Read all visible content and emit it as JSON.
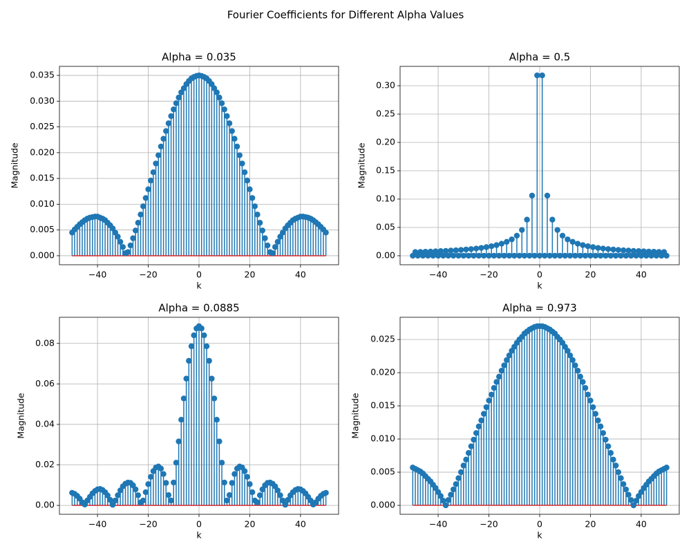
{
  "title": "Fourier Coefficients for Different Alpha Values",
  "chart_data": [
    {
      "type": "stem",
      "title": "Alpha = 0.035",
      "xlabel": "k",
      "ylabel": "Magnitude",
      "color": "#1f77b4",
      "baseline_color": "#d62728",
      "grid": true,
      "x": [
        -50,
        -49,
        -48,
        -47,
        -46,
        -45,
        -44,
        -43,
        -42,
        -41,
        -40,
        -39,
        -38,
        -37,
        -36,
        -35,
        -34,
        -33,
        -32,
        -31,
        -30,
        -29,
        -28,
        -27,
        -26,
        -25,
        -24,
        -23,
        -22,
        -21,
        -20,
        -19,
        -18,
        -17,
        -16,
        -15,
        -14,
        -13,
        -12,
        -11,
        -10,
        -9,
        -8,
        -7,
        -6,
        -5,
        -4,
        -3,
        -2,
        -1,
        0,
        1,
        2,
        3,
        4,
        5,
        6,
        7,
        8,
        9,
        10,
        11,
        12,
        13,
        14,
        15,
        16,
        17,
        18,
        19,
        20,
        21,
        22,
        23,
        24,
        25,
        26,
        27,
        28,
        29,
        30,
        31,
        32,
        33,
        34,
        35,
        36,
        37,
        38,
        39,
        40,
        41,
        42,
        43,
        44,
        45,
        46,
        47,
        48,
        49,
        50
      ],
      "values": [
        0.0045,
        0.0051,
        0.0056,
        0.0061,
        0.0065,
        0.0069,
        0.0072,
        0.0074,
        0.0075,
        0.0076,
        0.0076,
        0.0074,
        0.0072,
        0.0069,
        0.0064,
        0.0059,
        0.0053,
        0.0045,
        0.0037,
        0.0027,
        0.0017,
        0.0005,
        0.0007,
        0.002,
        0.0034,
        0.0049,
        0.0064,
        0.008,
        0.0096,
        0.0112,
        0.0129,
        0.0146,
        0.0162,
        0.0179,
        0.0195,
        0.0212,
        0.0227,
        0.0242,
        0.0257,
        0.0271,
        0.0284,
        0.0296,
        0.0307,
        0.0317,
        0.0325,
        0.0333,
        0.0339,
        0.0344,
        0.0347,
        0.0349,
        0.035,
        0.0349,
        0.0347,
        0.0344,
        0.0339,
        0.0333,
        0.0325,
        0.0317,
        0.0307,
        0.0296,
        0.0284,
        0.0271,
        0.0257,
        0.0242,
        0.0227,
        0.0212,
        0.0195,
        0.0179,
        0.0162,
        0.0146,
        0.0129,
        0.0112,
        0.0096,
        0.008,
        0.0064,
        0.0049,
        0.0034,
        0.002,
        0.0007,
        0.0005,
        0.0017,
        0.0027,
        0.0037,
        0.0045,
        0.0053,
        0.0059,
        0.0064,
        0.0069,
        0.0072,
        0.0074,
        0.0076,
        0.0076,
        0.0075,
        0.0074,
        0.0072,
        0.0069,
        0.0065,
        0.0061,
        0.0056,
        0.0051,
        0.0045
      ],
      "xlim": [
        -55,
        55
      ],
      "ylim": [
        -0.00175,
        0.03675
      ],
      "xticks": [
        {
          "value": -40,
          "label": "−40"
        },
        {
          "value": -20,
          "label": "−20"
        },
        0,
        20,
        40
      ],
      "yticks": [
        {
          "value": 0,
          "label": "0.000"
        },
        0.005,
        {
          "value": 0.01,
          "label": "0.010"
        },
        0.015,
        {
          "value": 0.02,
          "label": "0.020"
        },
        0.025,
        {
          "value": 0.03,
          "label": "0.030"
        },
        0.035
      ]
    },
    {
      "type": "stem",
      "title": "Alpha = 0.5",
      "xlabel": "k",
      "ylabel": "Magnitude",
      "color": "#1f77b4",
      "baseline_color": "#d62728",
      "grid": true,
      "x": [
        -50,
        -49,
        -48,
        -47,
        -46,
        -45,
        -44,
        -43,
        -42,
        -41,
        -40,
        -39,
        -38,
        -37,
        -36,
        -35,
        -34,
        -33,
        -32,
        -31,
        -30,
        -29,
        -28,
        -27,
        -26,
        -25,
        -24,
        -23,
        -22,
        -21,
        -20,
        -19,
        -18,
        -17,
        -16,
        -15,
        -14,
        -13,
        -12,
        -11,
        -10,
        -9,
        -8,
        -7,
        -6,
        -5,
        -4,
        -3,
        -2,
        -1,
        0,
        1,
        2,
        3,
        4,
        5,
        6,
        7,
        8,
        9,
        10,
        11,
        12,
        13,
        14,
        15,
        16,
        17,
        18,
        19,
        20,
        21,
        22,
        23,
        24,
        25,
        26,
        27,
        28,
        29,
        30,
        31,
        32,
        33,
        34,
        35,
        36,
        37,
        38,
        39,
        40,
        41,
        42,
        43,
        44,
        45,
        46,
        47,
        48,
        49,
        50
      ],
      "values": [
        0,
        0.0065,
        0,
        0.0068,
        0,
        0.0071,
        0,
        0.0074,
        0,
        0.0078,
        0,
        0.0082,
        0,
        0.0086,
        0,
        0.0091,
        0,
        0.0096,
        0,
        0.0103,
        0,
        0.011,
        0,
        0.0118,
        0,
        0.0127,
        0,
        0.0138,
        0,
        0.0152,
        0,
        0.0168,
        0,
        0.0187,
        0,
        0.0212,
        0,
        0.0245,
        0,
        0.0289,
        0,
        0.0354,
        0,
        0.0455,
        0,
        0.0637,
        0,
        0.1061,
        0,
        0.3183,
        0,
        0.3183,
        0,
        0.1061,
        0,
        0.0637,
        0,
        0.0455,
        0,
        0.0354,
        0,
        0.0289,
        0,
        0.0245,
        0,
        0.0212,
        0,
        0.0187,
        0,
        0.0168,
        0,
        0.0152,
        0,
        0.0138,
        0,
        0.0127,
        0,
        0.0118,
        0,
        0.011,
        0,
        0.0103,
        0,
        0.0096,
        0,
        0.0091,
        0,
        0.0086,
        0,
        0.0082,
        0,
        0.0078,
        0,
        0.0074,
        0,
        0.0071,
        0,
        0.0068,
        0,
        0.0065,
        0
      ],
      "xlim": [
        -55,
        55
      ],
      "ylim": [
        -0.0159,
        0.3342
      ],
      "xticks": [
        {
          "value": -40,
          "label": "−40"
        },
        {
          "value": -20,
          "label": "−20"
        },
        0,
        20,
        40
      ],
      "yticks": [
        {
          "value": 0,
          "label": "0.00"
        },
        0.05,
        {
          "value": 0.1,
          "label": "0.10"
        },
        0.15,
        {
          "value": 0.2,
          "label": "0.20"
        },
        0.25,
        {
          "value": 0.3,
          "label": "0.30"
        }
      ]
    },
    {
      "type": "stem",
      "title": "Alpha = 0.0885",
      "xlabel": "k",
      "ylabel": "Magnitude",
      "color": "#1f77b4",
      "baseline_color": "#d62728",
      "grid": true,
      "x": [
        -50,
        -49,
        -48,
        -47,
        -46,
        -45,
        -44,
        -43,
        -42,
        -41,
        -40,
        -39,
        -38,
        -37,
        -36,
        -35,
        -34,
        -33,
        -32,
        -31,
        -30,
        -29,
        -28,
        -27,
        -26,
        -25,
        -24,
        -23,
        -22,
        -21,
        -20,
        -19,
        -18,
        -17,
        -16,
        -15,
        -14,
        -13,
        -12,
        -11,
        -10,
        -9,
        -8,
        -7,
        -6,
        -5,
        -4,
        -3,
        -2,
        -1,
        0,
        1,
        2,
        3,
        4,
        5,
        6,
        7,
        8,
        9,
        10,
        11,
        12,
        13,
        14,
        15,
        16,
        17,
        18,
        19,
        20,
        21,
        22,
        23,
        24,
        25,
        26,
        27,
        28,
        29,
        30,
        31,
        32,
        33,
        34,
        35,
        36,
        37,
        38,
        39,
        40,
        41,
        42,
        43,
        44,
        45,
        46,
        47,
        48,
        49,
        50
      ],
      "values": [
        0.0062,
        0.0057,
        0.0047,
        0.0033,
        0.0015,
        0.0004,
        0.0024,
        0.0042,
        0.0059,
        0.0071,
        0.0079,
        0.0081,
        0.0076,
        0.0065,
        0.0049,
        0.0027,
        0.0003,
        0.0024,
        0.005,
        0.0074,
        0.0094,
        0.0107,
        0.0113,
        0.0111,
        0.0099,
        0.0079,
        0.005,
        0.0015,
        0.0024,
        0.0065,
        0.0105,
        0.0141,
        0.0169,
        0.0187,
        0.0192,
        0.0182,
        0.0155,
        0.0111,
        0.0051,
        0.0024,
        0.0113,
        0.0211,
        0.0316,
        0.0423,
        0.0528,
        0.0626,
        0.0714,
        0.0786,
        0.084,
        0.0874,
        0.0885,
        0.0874,
        0.084,
        0.0786,
        0.0714,
        0.0626,
        0.0528,
        0.0423,
        0.0316,
        0.0211,
        0.0113,
        0.0024,
        0.0051,
        0.0111,
        0.0155,
        0.0182,
        0.0192,
        0.0187,
        0.0169,
        0.0141,
        0.0105,
        0.0065,
        0.0024,
        0.0015,
        0.005,
        0.0079,
        0.0099,
        0.0111,
        0.0113,
        0.0107,
        0.0094,
        0.0074,
        0.005,
        0.0024,
        0.0003,
        0.0027,
        0.0049,
        0.0065,
        0.0076,
        0.0081,
        0.0079,
        0.0071,
        0.0059,
        0.0042,
        0.0024,
        0.0004,
        0.0015,
        0.0033,
        0.0047,
        0.0057,
        0.0062
      ],
      "xlim": [
        -55,
        55
      ],
      "ylim": [
        -0.0044,
        0.0929
      ],
      "xticks": [
        {
          "value": -40,
          "label": "−40"
        },
        {
          "value": -20,
          "label": "−20"
        },
        0,
        20,
        40
      ],
      "yticks": [
        {
          "value": 0,
          "label": "0.00"
        },
        0.02,
        0.04,
        0.06,
        0.08
      ]
    },
    {
      "type": "stem",
      "title": "Alpha = 0.973",
      "xlabel": "k",
      "ylabel": "Magnitude",
      "color": "#1f77b4",
      "baseline_color": "#d62728",
      "grid": true,
      "x": [
        -50,
        -49,
        -48,
        -47,
        -46,
        -45,
        -44,
        -43,
        -42,
        -41,
        -40,
        -39,
        -38,
        -37,
        -36,
        -35,
        -34,
        -33,
        -32,
        -31,
        -30,
        -29,
        -28,
        -27,
        -26,
        -25,
        -24,
        -23,
        -22,
        -21,
        -20,
        -19,
        -18,
        -17,
        -16,
        -15,
        -14,
        -13,
        -12,
        -11,
        -10,
        -9,
        -8,
        -7,
        -6,
        -5,
        -4,
        -3,
        -2,
        -1,
        0,
        1,
        2,
        3,
        4,
        5,
        6,
        7,
        8,
        9,
        10,
        11,
        12,
        13,
        14,
        15,
        16,
        17,
        18,
        19,
        20,
        21,
        22,
        23,
        24,
        25,
        26,
        27,
        28,
        29,
        30,
        31,
        32,
        33,
        34,
        35,
        36,
        37,
        38,
        39,
        40,
        41,
        42,
        43,
        44,
        45,
        46,
        47,
        48,
        49,
        50
      ],
      "values": [
        0.0057,
        0.0055,
        0.0053,
        0.0051,
        0.0048,
        0.0044,
        0.004,
        0.0036,
        0.0031,
        0.0026,
        0.002,
        0.0014,
        0.0007,
        0,
        0.0008,
        0.0016,
        0.0024,
        0.0032,
        0.0041,
        0.005,
        0.006,
        0.0069,
        0.0079,
        0.0089,
        0.0099,
        0.0109,
        0.0119,
        0.0128,
        0.0138,
        0.0148,
        0.0158,
        0.0167,
        0.0177,
        0.0186,
        0.0194,
        0.0203,
        0.0211,
        0.0219,
        0.0226,
        0.0233,
        0.0239,
        0.0245,
        0.025,
        0.0254,
        0.0259,
        0.0262,
        0.0265,
        0.0267,
        0.0269,
        0.027,
        0.027,
        0.027,
        0.0269,
        0.0267,
        0.0265,
        0.0262,
        0.0259,
        0.0254,
        0.025,
        0.0245,
        0.0239,
        0.0233,
        0.0226,
        0.0219,
        0.0211,
        0.0203,
        0.0194,
        0.0186,
        0.0177,
        0.0167,
        0.0158,
        0.0148,
        0.0138,
        0.0128,
        0.0119,
        0.0109,
        0.0099,
        0.0089,
        0.0079,
        0.0069,
        0.006,
        0.005,
        0.0041,
        0.0032,
        0.0024,
        0.0016,
        0.0008,
        0,
        0.0007,
        0.0014,
        0.002,
        0.0026,
        0.0031,
        0.0036,
        0.004,
        0.0044,
        0.0048,
        0.0051,
        0.0053,
        0.0055,
        0.0057
      ],
      "xlim": [
        -55,
        55
      ],
      "ylim": [
        -0.00135,
        0.02835
      ],
      "xticks": [
        {
          "value": -40,
          "label": "−40"
        },
        {
          "value": -20,
          "label": "−20"
        },
        0,
        20,
        40
      ],
      "yticks": [
        {
          "value": 0,
          "label": "0.000"
        },
        0.005,
        {
          "value": 0.01,
          "label": "0.010"
        },
        0.015,
        {
          "value": 0.02,
          "label": "0.020"
        },
        0.025
      ]
    }
  ]
}
